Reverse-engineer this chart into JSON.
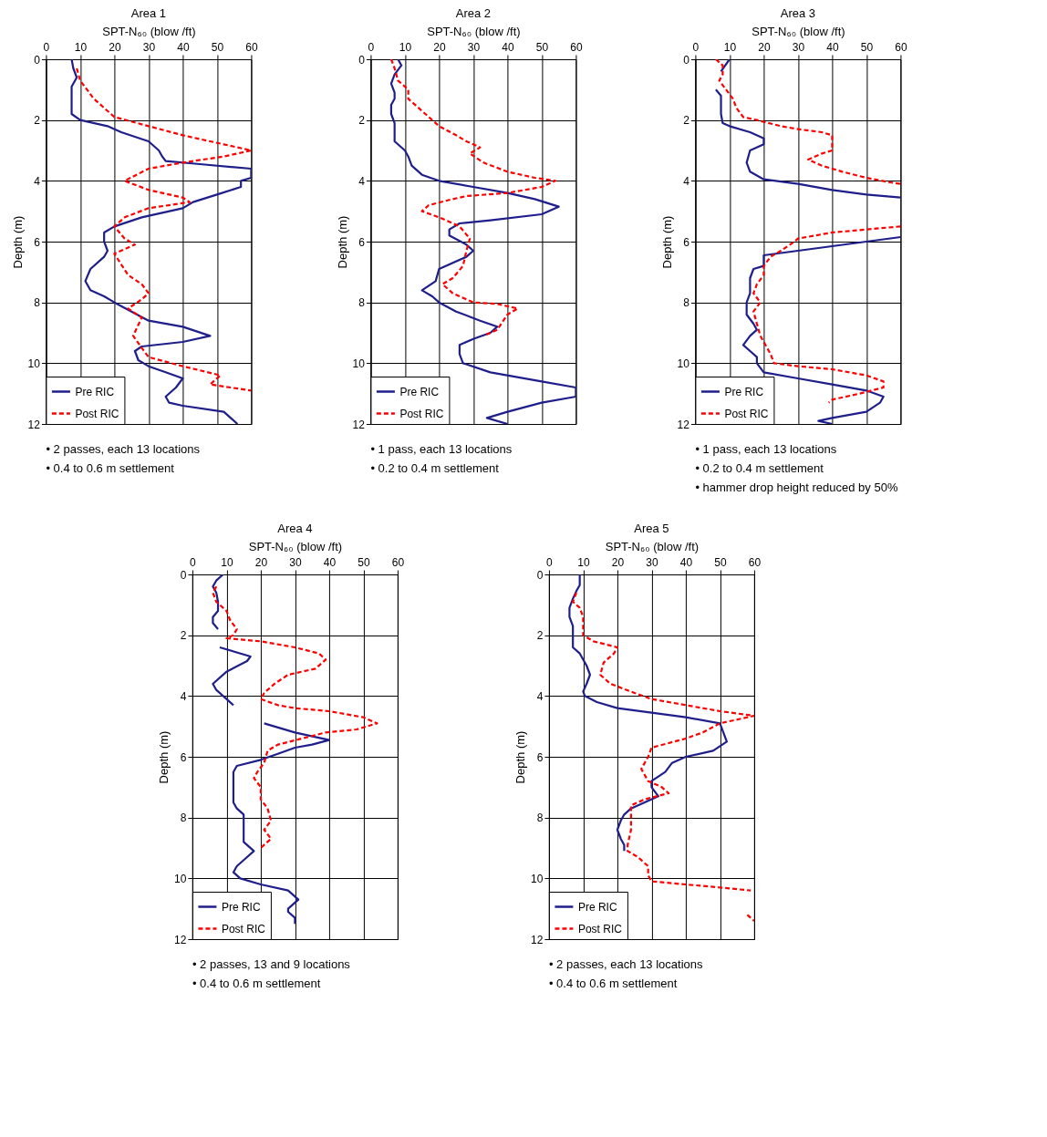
{
  "chart_data": [
    {
      "type": "line",
      "title": "Area 1",
      "xlabel": "SPT-N₆₀ (blow /ft)",
      "ylabel": "Depth (m)",
      "xlim": [
        0,
        60
      ],
      "xticks": [
        0,
        10,
        20,
        30,
        40,
        50,
        60
      ],
      "ylim": [
        12,
        0
      ],
      "yticks": [
        0,
        2,
        4,
        6,
        8,
        10,
        12
      ],
      "grid": true,
      "legend": "bottom left",
      "annotations": [
        "• 2 passes, each 13 locations",
        "• 0.4 to 0.6 m settlement"
      ],
      "series": [
        {
          "name": "Pre RIC",
          "color": "#1f1f8c",
          "line_style": "solid",
          "x": [
            7.5,
            8,
            9,
            7.5,
            7.5,
            7.5,
            10,
            18,
            22,
            30,
            33,
            34,
            35,
            45,
            60,
            60,
            57,
            57,
            50,
            43,
            40,
            28,
            20,
            17,
            17,
            18,
            17,
            13,
            11.5,
            13,
            17,
            20,
            25,
            30,
            40,
            48,
            40,
            28,
            26,
            27,
            30,
            35,
            40,
            38,
            35,
            36,
            40,
            52,
            54,
            56
          ],
          "values": [
            0,
            0.3,
            0.6,
            0.9,
            1.5,
            1.8,
            2.0,
            2.2,
            2.4,
            2.7,
            3.0,
            3.2,
            3.35,
            3.45,
            3.6,
            3.9,
            4.0,
            4.2,
            4.45,
            4.7,
            4.9,
            5.2,
            5.5,
            5.7,
            6.0,
            6.3,
            6.5,
            6.9,
            7.3,
            7.6,
            7.8,
            8.0,
            8.3,
            8.6,
            8.8,
            9.1,
            9.3,
            9.45,
            9.6,
            9.9,
            10.1,
            10.3,
            10.5,
            10.8,
            11.1,
            11.3,
            11.4,
            11.6,
            11.8,
            12
          ]
        },
        {
          "name": "Post RIC",
          "color": "#ff0000",
          "line_style": "dashed",
          "x": [
            9,
            10,
            14,
            20,
            30,
            40,
            52,
            60,
            52,
            40,
            30,
            23,
            30,
            40,
            42,
            30,
            23,
            20,
            23,
            26,
            20,
            24,
            28,
            30,
            28,
            24,
            28,
            25.5,
            28,
            30,
            40,
            51,
            48,
            60
          ],
          "values": [
            0.3,
            0.7,
            1.3,
            1.9,
            2.2,
            2.5,
            2.8,
            3.0,
            3.2,
            3.4,
            3.6,
            4.0,
            4.3,
            4.55,
            4.7,
            4.9,
            5.2,
            5.5,
            5.9,
            6.1,
            6.4,
            7.1,
            7.4,
            7.7,
            7.9,
            8.2,
            8.5,
            9.1,
            9.5,
            9.8,
            10.1,
            10.4,
            10.7,
            10.9
          ]
        }
      ]
    },
    {
      "type": "line",
      "title": "Area 2",
      "xlabel": "SPT-N₆₀ (blow /ft)",
      "ylabel": "Depth (m)",
      "xlim": [
        0,
        60
      ],
      "xticks": [
        0,
        10,
        20,
        30,
        40,
        50,
        60
      ],
      "ylim": [
        12,
        0
      ],
      "yticks": [
        0,
        2,
        4,
        6,
        8,
        10,
        12
      ],
      "grid": true,
      "legend": "bottom left",
      "annotations": [
        "• 1 pass, each 13 locations",
        "• 0.2 to 0.4 m settlement"
      ],
      "series": [
        {
          "name": "Pre RIC",
          "color": "#1f1f8c",
          "line_style": "solid",
          "x": [
            8,
            9,
            7,
            6,
            7,
            7,
            6,
            6,
            7,
            7,
            7,
            10,
            11,
            12,
            15,
            20,
            30,
            40,
            48,
            55,
            50,
            35,
            26,
            23,
            23,
            28,
            30,
            28,
            20,
            19,
            15,
            18,
            20,
            25,
            32,
            37,
            35,
            30,
            26,
            26,
            27,
            35,
            50,
            60,
            60,
            50,
            40,
            34,
            40
          ],
          "values": [
            0,
            0.2,
            0.5,
            0.8,
            1.1,
            1.3,
            1.5,
            1.8,
            2.1,
            2.5,
            2.7,
            3.0,
            3.2,
            3.5,
            3.8,
            4.0,
            4.2,
            4.4,
            4.6,
            4.85,
            5.1,
            5.3,
            5.4,
            5.6,
            5.8,
            6.1,
            6.3,
            6.5,
            6.9,
            7.3,
            7.6,
            7.8,
            8.0,
            8.3,
            8.6,
            8.8,
            9.0,
            9.2,
            9.4,
            9.7,
            10.0,
            10.3,
            10.6,
            10.8,
            11.1,
            11.3,
            11.6,
            11.8,
            12
          ]
        },
        {
          "name": "Post RIC",
          "color": "#ff0000",
          "line_style": "dashed",
          "x": [
            6,
            7,
            8,
            11,
            11,
            14,
            17,
            20,
            25,
            28,
            32,
            29,
            33,
            40,
            48,
            54,
            50,
            40,
            28,
            24,
            17,
            15,
            20,
            26,
            29,
            28,
            27,
            24,
            21,
            24,
            30,
            37,
            43,
            40,
            37,
            33
          ],
          "values": [
            0,
            0.3,
            0.7,
            1.0,
            1.3,
            1.6,
            1.9,
            2.2,
            2.5,
            2.7,
            2.9,
            3.1,
            3.4,
            3.7,
            3.9,
            4.0,
            4.2,
            4.4,
            4.5,
            4.6,
            4.8,
            5.0,
            5.2,
            5.5,
            5.9,
            6.3,
            6.8,
            7.2,
            7.4,
            7.7,
            8.0,
            8.05,
            8.2,
            8.4,
            8.9,
            9.1
          ]
        }
      ]
    },
    {
      "type": "line",
      "title": "Area 3",
      "xlabel": "SPT-N₆₀ (blow /ft)",
      "ylabel": "Depth (m)",
      "xlim": [
        0,
        60
      ],
      "xticks": [
        0,
        10,
        20,
        30,
        40,
        50,
        60
      ],
      "ylim": [
        12,
        0
      ],
      "yticks": [
        0,
        2,
        4,
        6,
        8,
        10,
        12
      ],
      "grid": true,
      "legend": "bottom left",
      "annotations": [
        "• 1 pass, each 13 locations",
        "• 0.2 to 0.4 m settlement",
        "• hammer drop height reduced by 50%"
      ],
      "series": [
        {
          "name": "Pre RIC",
          "color": "#1f1f8c",
          "line_style": "solid",
          "x": [
            10,
            7.5,
            null,
            6,
            7.5,
            7.5,
            8,
            10,
            16,
            20,
            20,
            16,
            15,
            16,
            20,
            30,
            40,
            50,
            60,
            null,
            60,
            50,
            40,
            30,
            20,
            20,
            17,
            16,
            16,
            16,
            15,
            15,
            17,
            18,
            16,
            14,
            16,
            18,
            18,
            20,
            30,
            40,
            50,
            55,
            54,
            50,
            40,
            36,
            40
          ],
          "values": [
            0,
            0.4,
            null,
            1.0,
            1.2,
            1.8,
            2.1,
            2.2,
            2.4,
            2.6,
            2.8,
            3.0,
            3.4,
            3.7,
            3.95,
            4.1,
            4.3,
            4.45,
            4.55,
            null,
            5.85,
            6.0,
            6.15,
            6.3,
            6.45,
            6.8,
            6.9,
            7.2,
            7.5,
            7.7,
            8.0,
            8.4,
            8.7,
            8.9,
            9.1,
            9.4,
            9.6,
            9.8,
            10.0,
            10.3,
            10.5,
            10.7,
            10.9,
            11.1,
            11.3,
            11.6,
            11.8,
            11.9,
            12
          ]
        },
        {
          "name": "Post RIC",
          "color": "#ff0000",
          "line_style": "dashed",
          "x": [
            6,
            8,
            8,
            7,
            9,
            11,
            12,
            14,
            18,
            25,
            30,
            37,
            40,
            40,
            37,
            33,
            37,
            43,
            50,
            57,
            60,
            null,
            60,
            50,
            40,
            30,
            29,
            25,
            22,
            20,
            20,
            18,
            17,
            19,
            17,
            18,
            19,
            20,
            22,
            23,
            30,
            40,
            50,
            55,
            55,
            48,
            40,
            39
          ],
          "values": [
            0,
            0.2,
            0.5,
            0.7,
            1.0,
            1.3,
            1.6,
            1.9,
            2.0,
            2.2,
            2.3,
            2.4,
            2.5,
            3.0,
            3.1,
            3.3,
            3.5,
            3.7,
            3.9,
            4.05,
            4.1,
            null,
            5.5,
            5.6,
            5.7,
            5.9,
            6.0,
            6.3,
            6.5,
            6.8,
            7.1,
            7.4,
            7.7,
            8.0,
            8.3,
            8.7,
            9.1,
            9.3,
            9.7,
            10.0,
            10.1,
            10.2,
            10.4,
            10.6,
            10.8,
            11.0,
            11.2,
            11.3
          ]
        }
      ]
    },
    {
      "type": "line",
      "title": "Area 4",
      "xlabel": "SPT-N₆₀ (blow /ft)",
      "ylabel": "Depth (m)",
      "xlim": [
        0,
        60
      ],
      "xticks": [
        0,
        10,
        20,
        30,
        40,
        50,
        60
      ],
      "ylim": [
        12,
        0
      ],
      "yticks": [
        0,
        2,
        4,
        6,
        8,
        10,
        12
      ],
      "grid": true,
      "legend": "bottom left",
      "annotations": [
        "• 2 passes, 13 and 9 locations",
        "• 0.4 to 0.6 m settlement"
      ],
      "series": [
        {
          "name": "Pre RIC",
          "color": "#1f1f8c",
          "line_style": "solid",
          "x": [
            9,
            7,
            6,
            7,
            7.5,
            7.5,
            6,
            6,
            7.5,
            null,
            8,
            17,
            16,
            10,
            6,
            7,
            10,
            12,
            null,
            21,
            30,
            40,
            35,
            30,
            25,
            20,
            13,
            12,
            12,
            12,
            13,
            15,
            15,
            15,
            15,
            18,
            16,
            13,
            12,
            14,
            20,
            28,
            31,
            28,
            28,
            30,
            30
          ],
          "values": [
            0,
            0.2,
            0.4,
            0.6,
            0.9,
            1.2,
            1.4,
            1.6,
            1.8,
            null,
            2.4,
            2.7,
            2.85,
            3.2,
            3.6,
            3.8,
            4.1,
            4.3,
            null,
            4.9,
            5.2,
            5.45,
            5.6,
            5.7,
            5.9,
            6.1,
            6.3,
            6.5,
            7.0,
            7.5,
            7.7,
            7.9,
            8.2,
            8.5,
            8.8,
            9.1,
            9.3,
            9.6,
            9.8,
            10.0,
            10.2,
            10.4,
            10.7,
            11.0,
            11.1,
            11.3,
            11.5
          ]
        },
        {
          "name": "Post RIC",
          "color": "#ff0000",
          "line_style": "dashed",
          "x": [
            7,
            6,
            7,
            10,
            11,
            13,
            12,
            10,
            20,
            30,
            37,
            39,
            36,
            28,
            24,
            21,
            20,
            25,
            30,
            40,
            50,
            54,
            48,
            39,
            32,
            25,
            22,
            21,
            19,
            18,
            20,
            20,
            22,
            23,
            21,
            23,
            20
          ],
          "values": [
            0.4,
            0.6,
            0.9,
            1.2,
            1.5,
            1.8,
            2.0,
            2.1,
            2.2,
            2.4,
            2.6,
            2.8,
            3.1,
            3.3,
            3.6,
            3.9,
            4.1,
            4.3,
            4.4,
            4.5,
            4.7,
            4.9,
            5.1,
            5.2,
            5.4,
            5.6,
            5.8,
            6.2,
            6.5,
            6.7,
            7.0,
            7.4,
            7.7,
            8.1,
            8.4,
            8.7,
            9.0
          ]
        }
      ]
    },
    {
      "type": "line",
      "title": "Area 5",
      "xlabel": "SPT-N₆₀ (blow /ft)",
      "ylabel": "Depth (m)",
      "xlim": [
        0,
        60
      ],
      "xticks": [
        0,
        10,
        20,
        30,
        40,
        50,
        60
      ],
      "ylim": [
        12,
        0
      ],
      "yticks": [
        0,
        2,
        4,
        6,
        8,
        10,
        12
      ],
      "grid": true,
      "legend": "bottom left",
      "annotations": [
        "• 2 passes, each 13 locations",
        "• 0.4 to 0.6 m settlement"
      ],
      "series": [
        {
          "name": "Pre RIC",
          "color": "#1f1f8c",
          "line_style": "solid",
          "x": [
            9,
            9,
            8,
            7,
            6,
            6,
            7,
            7,
            7,
            9,
            11,
            12,
            11,
            10,
            10.5,
            14,
            20,
            30,
            40,
            50,
            51,
            52,
            48,
            40,
            36,
            34,
            30,
            30,
            32,
            28,
            24,
            22,
            21,
            20,
            21,
            22,
            22
          ],
          "values": [
            0,
            0.35,
            0.55,
            0.8,
            1.1,
            1.4,
            1.7,
            2.0,
            2.4,
            2.6,
            3.0,
            3.3,
            3.6,
            3.85,
            4.0,
            4.2,
            4.4,
            4.55,
            4.7,
            4.9,
            5.2,
            5.5,
            5.8,
            6.0,
            6.2,
            6.5,
            6.8,
            7.0,
            7.3,
            7.5,
            7.7,
            7.9,
            8.1,
            8.4,
            8.7,
            8.9,
            9.1
          ]
        },
        {
          "name": "Post RIC",
          "color": "#ff0000",
          "line_style": "dashed",
          "x": [
            8,
            7,
            9,
            10,
            10,
            10,
            13,
            20,
            19,
            16,
            15,
            18,
            25,
            30,
            40,
            50,
            60,
            50,
            45,
            40,
            30,
            29,
            27,
            29,
            33,
            35,
            28,
            24,
            24,
            24,
            23,
            23,
            26,
            29,
            29,
            30,
            40,
            50,
            59,
            null,
            58,
            60
          ],
          "values": [
            0.6,
            0.9,
            1.1,
            1.4,
            1.8,
            2.0,
            2.2,
            2.4,
            2.6,
            2.9,
            3.3,
            3.6,
            3.9,
            4.1,
            4.3,
            4.5,
            4.65,
            4.9,
            5.2,
            5.4,
            5.7,
            6.0,
            6.4,
            6.8,
            7.0,
            7.2,
            7.4,
            7.6,
            8.0,
            8.4,
            8.9,
            9.1,
            9.3,
            9.6,
            9.9,
            10.1,
            10.2,
            10.3,
            10.4,
            null,
            11.2,
            11.4
          ]
        }
      ]
    }
  ]
}
